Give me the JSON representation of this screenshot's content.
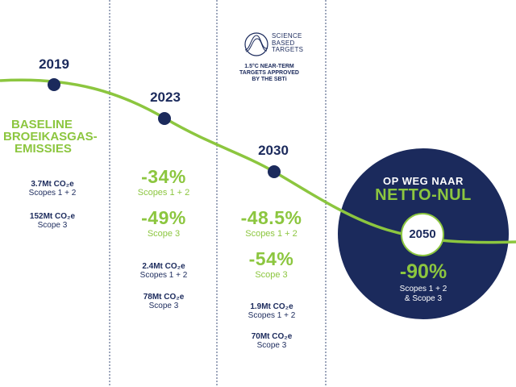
{
  "years": {
    "y2019": "2019",
    "y2023": "2023",
    "y2030": "2030",
    "y2050": "2050"
  },
  "baseline": {
    "title_line1": "BASELINE",
    "title_line2": "BROEIKASGAS-",
    "title_line3": "EMISSIES",
    "scope12_value": "3.7Mt CO₂e",
    "scope12_label": "Scopes 1 + 2",
    "scope3_value": "152Mt CO₂e",
    "scope3_label": "Scope 3"
  },
  "target2023": {
    "pct_scope12": "-34%",
    "label_scope12": "Scopes 1 + 2",
    "pct_scope3": "-49%",
    "label_scope3": "Scope 3",
    "scope12_value": "2.4Mt CO₂e",
    "scope12_label": "Scopes 1 + 2",
    "scope3_value": "78Mt CO₂e",
    "scope3_label": "Scope 3"
  },
  "target2030": {
    "pct_scope12": "-48.5%",
    "label_scope12": "Scopes 1 + 2",
    "pct_scope3": "-54%",
    "label_scope3": "Scope 3",
    "scope12_value": "1.9Mt CO₂e",
    "scope12_label": "Scopes 1 + 2",
    "scope3_value": "70Mt CO₂e",
    "scope3_label": "Scope 3"
  },
  "sbti": {
    "logo_line1": "SCIENCE",
    "logo_line2": "BASED",
    "logo_line3": "TARGETS",
    "note_line1": "1.5°C NEAR-TERM",
    "note_line2": "TARGETS APPROVED",
    "note_line3": "BY THE SBTi"
  },
  "netzero": {
    "heading": "OP WEG NAAR",
    "title": "NETTO-NUL",
    "pct": "-90%",
    "scope_line1": "Scopes 1 + 2",
    "scope_line2": "& Scope 3"
  },
  "colors": {
    "navy": "#1b2a5c",
    "green": "#8cc63f",
    "divider": "#3d4f7a"
  }
}
